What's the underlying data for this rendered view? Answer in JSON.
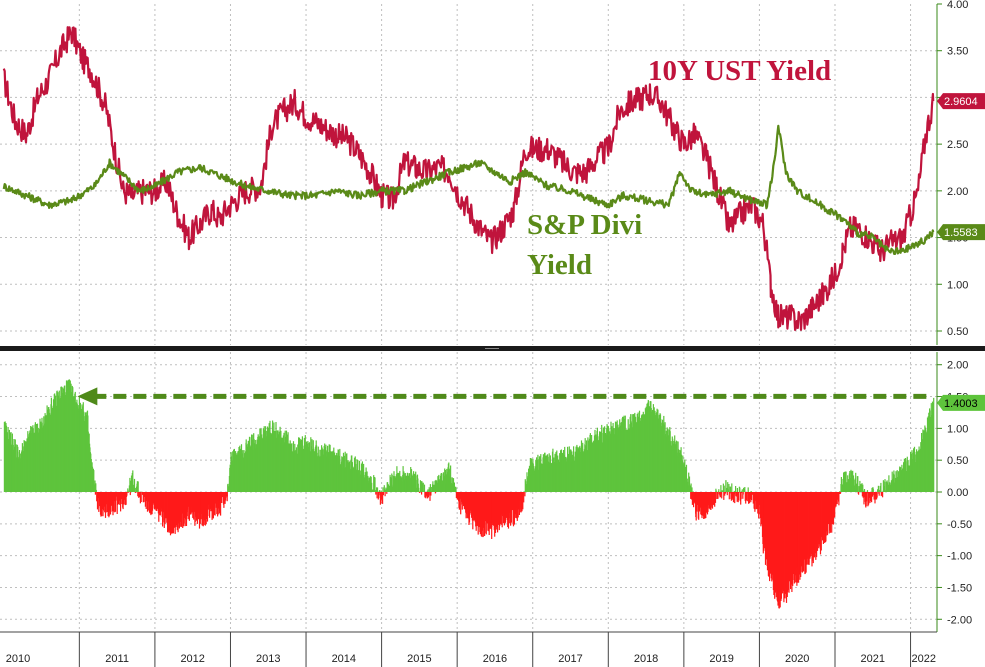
{
  "chart_data": [
    {
      "type": "line",
      "panel": "top",
      "x_unit": "year",
      "ylim": [
        0.35,
        4.0
      ],
      "yticks": [
        "4.00",
        "3.50",
        "3.00",
        "2.50",
        "2.00",
        "1.50",
        "1.00",
        "0.50"
      ],
      "grid": true,
      "annotations": [
        {
          "text": "10Y UST Yield",
          "color": "#c0143c"
        },
        {
          "text": "S&P Divi",
          "color": "#5a8a18"
        },
        {
          "text": "Yield",
          "color": "#5a8a18"
        }
      ],
      "series": [
        {
          "name": "10Y UST Yield",
          "color": "#c0143c",
          "last_value_label": "2.9604",
          "x": [
            2010.0,
            2010.15,
            2010.3,
            2010.45,
            2010.6,
            2010.75,
            2010.9,
            2011.05,
            2011.15,
            2011.35,
            2011.5,
            2011.58,
            2011.7,
            2011.85,
            2012.0,
            2012.15,
            2012.3,
            2012.45,
            2012.6,
            2012.75,
            2012.85,
            2013.0,
            2013.2,
            2013.4,
            2013.55,
            2013.7,
            2013.85,
            2014.0,
            2014.2,
            2014.4,
            2014.55,
            2014.7,
            2014.85,
            2015.0,
            2015.15,
            2015.3,
            2015.45,
            2015.6,
            2015.75,
            2015.9,
            2016.0,
            2016.15,
            2016.3,
            2016.45,
            2016.6,
            2016.75,
            2016.9,
            2017.0,
            2017.2,
            2017.4,
            2017.55,
            2017.7,
            2017.85,
            2018.0,
            2018.15,
            2018.3,
            2018.45,
            2018.55,
            2018.7,
            2018.85,
            2019.0,
            2019.15,
            2019.3,
            2019.45,
            2019.6,
            2019.75,
            2019.9,
            2020.05,
            2020.15,
            2020.25,
            2020.4,
            2020.55,
            2020.7,
            2020.85,
            2021.0,
            2021.1,
            2021.2,
            2021.3,
            2021.45,
            2021.6,
            2021.75,
            2021.9,
            2022.0,
            2022.1,
            2022.2,
            2022.3
          ],
          "y": [
            3.2,
            2.75,
            2.6,
            3.0,
            3.2,
            3.5,
            3.7,
            3.4,
            3.3,
            2.9,
            2.3,
            2.0,
            1.95,
            2.0,
            2.0,
            2.1,
            1.75,
            1.5,
            1.65,
            1.8,
            1.7,
            1.85,
            2.0,
            2.05,
            2.7,
            2.85,
            2.95,
            2.8,
            2.7,
            2.6,
            2.55,
            2.4,
            2.2,
            1.95,
            1.9,
            2.3,
            2.25,
            2.2,
            2.25,
            2.2,
            2.0,
            1.8,
            1.6,
            1.45,
            1.6,
            1.8,
            2.45,
            2.45,
            2.45,
            2.3,
            2.2,
            2.2,
            2.35,
            2.45,
            2.85,
            2.95,
            3.0,
            3.05,
            2.95,
            2.7,
            2.5,
            2.6,
            2.35,
            2.0,
            1.6,
            1.75,
            1.85,
            1.65,
            1.0,
            0.65,
            0.65,
            0.6,
            0.75,
            0.9,
            1.1,
            1.35,
            1.6,
            1.6,
            1.5,
            1.35,
            1.45,
            1.5,
            1.75,
            2.0,
            2.6,
            2.9604
          ]
        },
        {
          "name": "S&P Divi Yield",
          "color": "#5a8a18",
          "last_value_label": "1.5583",
          "x": [
            2010.0,
            2010.3,
            2010.6,
            2010.9,
            2011.2,
            2011.4,
            2011.6,
            2011.8,
            2012.0,
            2012.3,
            2012.6,
            2012.9,
            2013.2,
            2013.5,
            2013.8,
            2014.1,
            2014.4,
            2014.7,
            2015.0,
            2015.3,
            2015.6,
            2015.9,
            2016.1,
            2016.3,
            2016.5,
            2016.7,
            2016.9,
            2017.2,
            2017.5,
            2017.8,
            2018.0,
            2018.2,
            2018.5,
            2018.8,
            2018.95,
            2019.1,
            2019.3,
            2019.6,
            2019.9,
            2020.1,
            2020.2,
            2020.25,
            2020.35,
            2020.5,
            2020.7,
            2020.9,
            2021.1,
            2021.3,
            2021.5,
            2021.7,
            2021.9,
            2022.0,
            2022.15,
            2022.3
          ],
          "y": [
            2.05,
            1.95,
            1.85,
            1.9,
            2.05,
            2.3,
            2.15,
            2.0,
            2.05,
            2.2,
            2.25,
            2.15,
            2.05,
            2.0,
            1.95,
            1.95,
            2.0,
            1.95,
            2.0,
            2.0,
            2.1,
            2.2,
            2.25,
            2.3,
            2.2,
            2.1,
            2.2,
            2.05,
            2.0,
            1.9,
            1.85,
            1.95,
            1.9,
            1.85,
            2.2,
            2.0,
            1.95,
            2.0,
            1.9,
            1.85,
            2.3,
            2.7,
            2.2,
            2.0,
            1.9,
            1.8,
            1.7,
            1.55,
            1.5,
            1.35,
            1.35,
            1.4,
            1.45,
            1.5583
          ]
        }
      ]
    },
    {
      "type": "area",
      "panel": "bottom",
      "title": "",
      "x_unit": "year",
      "ylim": [
        -2.2,
        2.2
      ],
      "yticks": [
        "2.00",
        "1.50",
        "1.00",
        "0.50",
        "0.00",
        "-0.50",
        "-1.00",
        "-1.50",
        "-2.00"
      ],
      "grid": true,
      "positive_color": "#5ec43c",
      "negative_color": "#ff1a1a",
      "arrow_color": "#4f8a1a",
      "arrow_level": 1.55,
      "last_value_label": "1.4003",
      "series": [
        {
          "name": "",
          "x": [
            2010.0,
            2010.1,
            2010.2,
            2010.35,
            2010.5,
            2010.6,
            2010.75,
            2010.85,
            2011.0,
            2011.1,
            2011.15,
            2011.25,
            2011.35,
            2011.5,
            2011.6,
            2011.7,
            2011.8,
            2011.9,
            2012.0,
            2012.1,
            2012.2,
            2012.3,
            2012.45,
            2012.6,
            2012.75,
            2012.85,
            2012.95,
            2013.0,
            2013.2,
            2013.4,
            2013.55,
            2013.7,
            2013.85,
            2014.0,
            2014.2,
            2014.4,
            2014.6,
            2014.8,
            2015.0,
            2015.15,
            2015.3,
            2015.45,
            2015.6,
            2015.75,
            2015.9,
            2016.0,
            2016.15,
            2016.3,
            2016.45,
            2016.6,
            2016.75,
            2016.85,
            2016.95,
            2017.1,
            2017.3,
            2017.5,
            2017.7,
            2017.85,
            2018.0,
            2018.2,
            2018.4,
            2018.55,
            2018.65,
            2018.8,
            2018.95,
            2019.05,
            2019.15,
            2019.3,
            2019.4,
            2019.55,
            2019.7,
            2019.85,
            2020.0,
            2020.05,
            2020.15,
            2020.25,
            2020.35,
            2020.5,
            2020.65,
            2020.8,
            2020.95,
            2021.1,
            2021.25,
            2021.4,
            2021.55,
            2021.7,
            2021.85,
            2022.0,
            2022.1,
            2022.2,
            2022.3
          ],
          "y": [
            1.0,
            0.8,
            0.55,
            0.9,
            1.05,
            1.3,
            1.55,
            1.65,
            1.35,
            1.15,
            0.45,
            -0.25,
            -0.3,
            -0.2,
            -0.1,
            0.2,
            -0.05,
            -0.2,
            -0.3,
            -0.4,
            -0.55,
            -0.5,
            -0.35,
            -0.45,
            -0.3,
            -0.25,
            -0.05,
            0.5,
            0.7,
            0.9,
            1.0,
            0.85,
            0.7,
            0.75,
            0.65,
            0.55,
            0.45,
            0.3,
            -0.1,
            0.25,
            0.3,
            0.2,
            -0.05,
            0.15,
            0.35,
            -0.2,
            -0.4,
            -0.55,
            -0.6,
            -0.45,
            -0.4,
            -0.2,
            0.4,
            0.45,
            0.55,
            0.6,
            0.75,
            0.9,
            0.95,
            1.05,
            1.15,
            1.35,
            1.2,
            0.9,
            0.6,
            0.2,
            -0.3,
            -0.35,
            -0.1,
            0.05,
            -0.05,
            -0.05,
            -0.3,
            -0.9,
            -1.4,
            -1.7,
            -1.6,
            -1.3,
            -1.1,
            -0.85,
            -0.5,
            0.2,
            0.2,
            -0.1,
            -0.05,
            0.15,
            0.3,
            0.5,
            0.65,
            1.0,
            1.4003
          ]
        }
      ]
    }
  ],
  "x_axis": {
    "year_labels": [
      "2010",
      "2011",
      "2012",
      "2013",
      "2014",
      "2015",
      "2016",
      "2017",
      "2018",
      "2019",
      "2020",
      "2021",
      "2022"
    ]
  }
}
